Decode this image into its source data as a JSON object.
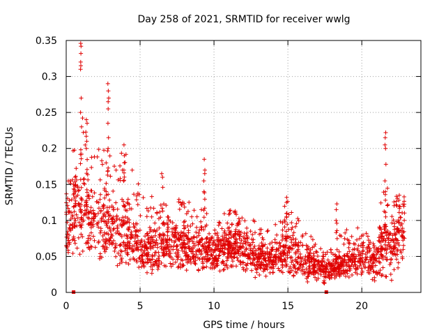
{
  "chart_data": {
    "type": "scatter",
    "title": "Day 258 of 2021, SRMTID for receiver wwlg",
    "xlabel": "GPS time / hours",
    "ylabel": "SRMTID / TECUs",
    "xlim": [
      0,
      24
    ],
    "ylim": [
      0,
      0.35
    ],
    "xticks": [
      "0",
      "5",
      "10",
      "15",
      "20"
    ],
    "xtick_values": [
      0,
      5,
      10,
      15,
      20
    ],
    "yticks": [
      "0",
      "0.05",
      "0.1",
      "0.15",
      "0.2",
      "0.25",
      "0.3",
      "0.35"
    ],
    "ytick_values": [
      0,
      0.05,
      0.1,
      0.15,
      0.2,
      0.25,
      0.3,
      0.35
    ],
    "grid": true,
    "series": [
      {
        "name": "SRMTID",
        "color": "#e00000",
        "marker": "+",
        "envelope": [
          {
            "x": 0.0,
            "low": 0.045,
            "mean": 0.09,
            "high": 0.2
          },
          {
            "x": 0.5,
            "low": 0.06,
            "mean": 0.12,
            "high": 0.2
          },
          {
            "x": 1.0,
            "low": 0.06,
            "mean": 0.11,
            "high": 0.25
          },
          {
            "x": 1.5,
            "low": 0.06,
            "mean": 0.11,
            "high": 0.22
          },
          {
            "x": 2.0,
            "low": 0.05,
            "mean": 0.1,
            "high": 0.2
          },
          {
            "x": 3.0,
            "low": 0.04,
            "mean": 0.09,
            "high": 0.2
          },
          {
            "x": 4.0,
            "low": 0.04,
            "mean": 0.085,
            "high": 0.2
          },
          {
            "x": 5.0,
            "low": 0.025,
            "mean": 0.055,
            "high": 0.15
          },
          {
            "x": 6.0,
            "low": 0.03,
            "mean": 0.06,
            "high": 0.13
          },
          {
            "x": 7.0,
            "low": 0.04,
            "mean": 0.07,
            "high": 0.12
          },
          {
            "x": 8.0,
            "low": 0.03,
            "mean": 0.06,
            "high": 0.14
          },
          {
            "x": 9.0,
            "low": 0.03,
            "mean": 0.06,
            "high": 0.12
          },
          {
            "x": 10.0,
            "low": 0.03,
            "mean": 0.055,
            "high": 0.1
          },
          {
            "x": 11.0,
            "low": 0.03,
            "mean": 0.06,
            "high": 0.12
          },
          {
            "x": 12.0,
            "low": 0.03,
            "mean": 0.06,
            "high": 0.11
          },
          {
            "x": 13.0,
            "low": 0.025,
            "mean": 0.05,
            "high": 0.1
          },
          {
            "x": 14.0,
            "low": 0.02,
            "mean": 0.045,
            "high": 0.09
          },
          {
            "x": 15.0,
            "low": 0.025,
            "mean": 0.06,
            "high": 0.13
          },
          {
            "x": 16.0,
            "low": 0.02,
            "mean": 0.045,
            "high": 0.09
          },
          {
            "x": 17.0,
            "low": 0.015,
            "mean": 0.035,
            "high": 0.07
          },
          {
            "x": 17.5,
            "low": 0.015,
            "mean": 0.03,
            "high": 0.06
          },
          {
            "x": 18.0,
            "low": 0.02,
            "mean": 0.035,
            "high": 0.07
          },
          {
            "x": 19.0,
            "low": 0.02,
            "mean": 0.04,
            "high": 0.09
          },
          {
            "x": 20.0,
            "low": 0.025,
            "mean": 0.05,
            "high": 0.09
          },
          {
            "x": 21.0,
            "low": 0.015,
            "mean": 0.045,
            "high": 0.08
          },
          {
            "x": 21.5,
            "low": 0.03,
            "mean": 0.08,
            "high": 0.16
          },
          {
            "x": 22.0,
            "low": 0.02,
            "mean": 0.06,
            "high": 0.13
          },
          {
            "x": 22.9,
            "low": 0.04,
            "mean": 0.09,
            "high": 0.14
          }
        ],
        "spikes": [
          {
            "x": 0.6,
            "values": [
              0.15,
              0.16
            ]
          },
          {
            "x": 1.0,
            "values": [
              0.23,
              0.25,
              0.27,
              0.31,
              0.315,
              0.32,
              0.332,
              0.342,
              0.346
            ]
          },
          {
            "x": 1.4,
            "values": [
              0.2,
              0.21,
              0.235,
              0.24
            ]
          },
          {
            "x": 2.85,
            "values": [
              0.2,
              0.215,
              0.235,
              0.255,
              0.265,
              0.27,
              0.28,
              0.29
            ]
          },
          {
            "x": 3.9,
            "values": [
              0.17,
              0.18,
              0.19,
              0.205
            ]
          },
          {
            "x": 6.5,
            "values": [
              0.16,
              0.165
            ]
          },
          {
            "x": 9.35,
            "values": [
              0.14,
              0.155,
              0.165,
              0.17,
              0.185
            ]
          },
          {
            "x": 14.9,
            "values": [
              0.11,
              0.125,
              0.132
            ]
          },
          {
            "x": 18.3,
            "values": [
              0.1,
              0.115,
              0.123
            ]
          },
          {
            "x": 21.6,
            "values": [
              0.14,
              0.155,
              0.178,
              0.2,
              0.205,
              0.215,
              0.222
            ]
          },
          {
            "x": 22.5,
            "values": [
              0.12,
              0.128,
              0.135
            ]
          }
        ],
        "zero_markers_x": [
          0.5,
          17.6
        ]
      }
    ]
  }
}
